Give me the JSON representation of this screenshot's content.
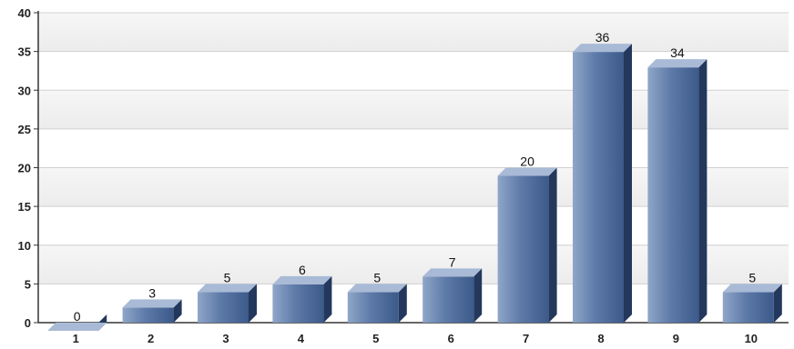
{
  "chart_data": {
    "type": "bar",
    "categories": [
      "1",
      "2",
      "3",
      "4",
      "5",
      "6",
      "7",
      "8",
      "9",
      "10"
    ],
    "values": [
      0,
      3,
      5,
      6,
      5,
      7,
      20,
      36,
      34,
      5
    ],
    "title": "",
    "xlabel": "",
    "ylabel": "",
    "ylim": [
      0,
      40
    ],
    "yticks": [
      "0",
      "5",
      "10",
      "15",
      "20",
      "25",
      "30",
      "35",
      "40"
    ],
    "grid": true,
    "legend": "none",
    "bar_style": "3d",
    "colors": {
      "bar_front_light": "#8fa6c8",
      "bar_front_dark": "#3c5a8a",
      "bar_side": "#23385c",
      "bar_top": "#a9bad6",
      "grid": "#d0d0d0",
      "band": "#ececec"
    }
  }
}
